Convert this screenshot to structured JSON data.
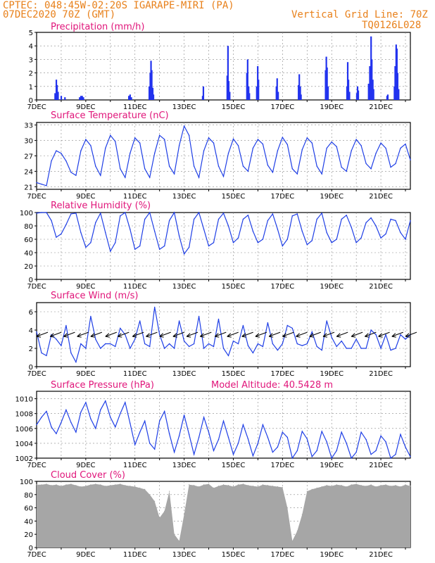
{
  "header": {
    "line1": "CPTEC:   048:45W-02:20S   IGARAPE-MIRI (PA)",
    "line2": "07DEC2020 70Z (GMT)",
    "grid_note": "Vertical Grid Line: 70Z",
    "code": "TQ0126L028"
  },
  "colors": {
    "header": "#e8801a",
    "title": "#e0157a",
    "line": "#1f3fe6",
    "bar": "#2233ee",
    "cloud": "#a6a6a6"
  },
  "chart_data": [
    {
      "type": "bar",
      "title": "Precipitation (mm/h)",
      "x_labels": [
        "7DEC",
        "9DEC",
        "11DEC",
        "13DEC",
        "15DEC",
        "17DEC",
        "19DEC",
        "21DEC"
      ],
      "x_unit": "day",
      "xlim": [
        7.0,
        22.2
      ],
      "ylim": [
        0,
        5
      ],
      "yticks": [
        0,
        1,
        2,
        3,
        4,
        5
      ],
      "points": [
        [
          7.75,
          0.5
        ],
        [
          7.8,
          1.5
        ],
        [
          7.83,
          1.1
        ],
        [
          7.87,
          0.6
        ],
        [
          8.0,
          0.3
        ],
        [
          8.15,
          0.2
        ],
        [
          8.75,
          0.2
        ],
        [
          8.8,
          0.3
        ],
        [
          8.85,
          0.3
        ],
        [
          8.9,
          0.2
        ],
        [
          10.75,
          0.3
        ],
        [
          10.8,
          0.4
        ],
        [
          10.85,
          0.2
        ],
        [
          11.58,
          1.0
        ],
        [
          11.62,
          2.0
        ],
        [
          11.65,
          2.9
        ],
        [
          11.68,
          2.2
        ],
        [
          11.72,
          0.9
        ],
        [
          11.75,
          0.4
        ],
        [
          13.75,
          0.3
        ],
        [
          13.78,
          1.0
        ],
        [
          14.75,
          1.8
        ],
        [
          14.78,
          4.0
        ],
        [
          14.81,
          1.4
        ],
        [
          14.85,
          0.6
        ],
        [
          15.55,
          2.0
        ],
        [
          15.58,
          3.0
        ],
        [
          15.62,
          1.0
        ],
        [
          15.65,
          0.5
        ],
        [
          15.95,
          1.0
        ],
        [
          15.99,
          2.5
        ],
        [
          16.02,
          1.5
        ],
        [
          16.75,
          1.0
        ],
        [
          16.78,
          1.6
        ],
        [
          16.82,
          0.6
        ],
        [
          17.65,
          1.1
        ],
        [
          17.68,
          1.9
        ],
        [
          17.72,
          1.0
        ],
        [
          17.75,
          0.4
        ],
        [
          18.75,
          2.2
        ],
        [
          18.78,
          3.2
        ],
        [
          18.81,
          2.4
        ],
        [
          18.85,
          1.0
        ],
        [
          19.62,
          1.0
        ],
        [
          19.65,
          2.8
        ],
        [
          19.68,
          1.5
        ],
        [
          19.72,
          0.6
        ],
        [
          20.02,
          0.5
        ],
        [
          20.05,
          1.0
        ],
        [
          20.08,
          0.7
        ],
        [
          20.5,
          1.2
        ],
        [
          20.55,
          2.5
        ],
        [
          20.6,
          4.7
        ],
        [
          20.63,
          3.0
        ],
        [
          20.67,
          1.5
        ],
        [
          20.7,
          0.8
        ],
        [
          21.25,
          0.3
        ],
        [
          21.28,
          0.4
        ],
        [
          21.55,
          1.0
        ],
        [
          21.58,
          2.5
        ],
        [
          21.62,
          4.1
        ],
        [
          21.65,
          3.8
        ],
        [
          21.68,
          2.0
        ],
        [
          21.72,
          0.8
        ]
      ]
    },
    {
      "type": "line",
      "title": "Surface Temperature (nC)",
      "x_labels": [
        "7DEC",
        "9DEC",
        "11DEC",
        "13DEC",
        "15DEC",
        "17DEC",
        "19DEC",
        "21DEC"
      ],
      "xlim": [
        7.0,
        22.2
      ],
      "ylim": [
        20.5,
        33.5
      ],
      "yticks": [
        21,
        24,
        27,
        30,
        33
      ],
      "x": [
        7.0,
        7.2,
        7.4,
        7.6,
        7.8,
        8.0,
        8.2,
        8.4,
        8.6,
        8.8,
        9.0,
        9.2,
        9.4,
        9.6,
        9.8,
        10.0,
        10.2,
        10.4,
        10.6,
        10.8,
        11.0,
        11.2,
        11.4,
        11.6,
        11.8,
        12.0,
        12.2,
        12.4,
        12.6,
        12.8,
        13.0,
        13.2,
        13.4,
        13.6,
        13.8,
        14.0,
        14.2,
        14.4,
        14.6,
        14.8,
        15.0,
        15.2,
        15.4,
        15.6,
        15.8,
        16.0,
        16.2,
        16.4,
        16.6,
        16.8,
        17.0,
        17.2,
        17.4,
        17.6,
        17.8,
        18.0,
        18.2,
        18.4,
        18.6,
        18.8,
        19.0,
        19.2,
        19.4,
        19.6,
        19.8,
        20.0,
        20.2,
        20.4,
        20.6,
        20.8,
        21.0,
        21.2,
        21.4,
        21.6,
        21.8,
        22.0,
        22.2
      ],
      "y": [
        21.8,
        21.5,
        21.2,
        26.0,
        28.0,
        27.5,
        26.0,
        23.8,
        23.2,
        28.0,
        30.2,
        29.0,
        25.0,
        23.2,
        28.5,
        31.0,
        29.8,
        24.5,
        22.8,
        27.5,
        30.5,
        29.5,
        24.5,
        22.8,
        27.5,
        31.0,
        30.2,
        25.0,
        23.5,
        29.0,
        32.8,
        31.0,
        25.0,
        22.8,
        28.0,
        30.5,
        29.5,
        25.0,
        23.0,
        27.5,
        30.3,
        29.0,
        25.0,
        24.0,
        28.5,
        30.2,
        29.3,
        25.2,
        23.8,
        28.0,
        30.6,
        29.2,
        24.5,
        23.5,
        28.2,
        30.5,
        29.5,
        25.0,
        23.5,
        28.5,
        29.7,
        28.8,
        24.8,
        24.0,
        28.0,
        30.2,
        29.0,
        25.5,
        24.5,
        27.5,
        29.5,
        28.5,
        24.8,
        25.5,
        28.5,
        29.3,
        26.2
      ]
    },
    {
      "type": "line",
      "title": "Relative Humidity (%)",
      "x_labels": [
        "7DEC",
        "9DEC",
        "11DEC",
        "13DEC",
        "15DEC",
        "17DEC",
        "19DEC",
        "21DEC"
      ],
      "xlim": [
        7.0,
        22.2
      ],
      "ylim": [
        0,
        100
      ],
      "yticks": [
        0,
        20,
        40,
        60,
        80,
        100
      ],
      "x": [
        7.0,
        7.2,
        7.4,
        7.6,
        7.8,
        8.0,
        8.2,
        8.4,
        8.6,
        8.8,
        9.0,
        9.2,
        9.4,
        9.6,
        9.8,
        10.0,
        10.2,
        10.4,
        10.6,
        10.8,
        11.0,
        11.2,
        11.4,
        11.6,
        11.8,
        12.0,
        12.2,
        12.4,
        12.6,
        12.8,
        13.0,
        13.2,
        13.4,
        13.6,
        13.8,
        14.0,
        14.2,
        14.4,
        14.6,
        14.8,
        15.0,
        15.2,
        15.4,
        15.6,
        15.8,
        16.0,
        16.2,
        16.4,
        16.6,
        16.8,
        17.0,
        17.2,
        17.4,
        17.6,
        17.8,
        18.0,
        18.2,
        18.4,
        18.6,
        18.8,
        19.0,
        19.2,
        19.4,
        19.6,
        19.8,
        20.0,
        20.2,
        20.4,
        20.6,
        20.8,
        21.0,
        21.2,
        21.4,
        21.6,
        21.8,
        22.0,
        22.2
      ],
      "y": [
        99,
        100,
        100,
        88,
        63,
        68,
        82,
        98,
        99,
        70,
        48,
        55,
        85,
        99,
        70,
        42,
        55,
        95,
        100,
        75,
        45,
        50,
        90,
        100,
        72,
        45,
        50,
        88,
        100,
        65,
        38,
        48,
        90,
        100,
        75,
        50,
        55,
        90,
        99,
        80,
        55,
        62,
        90,
        96,
        72,
        55,
        60,
        88,
        98,
        75,
        50,
        60,
        95,
        98,
        72,
        52,
        58,
        90,
        99,
        70,
        55,
        60,
        90,
        96,
        78,
        55,
        62,
        85,
        92,
        80,
        62,
        68,
        90,
        88,
        70,
        60,
        88
      ]
    },
    {
      "type": "line",
      "title": "Surface Wind (m/s)",
      "x_labels": [
        "7DEC",
        "9DEC",
        "11DEC",
        "13DEC",
        "15DEC",
        "17DEC",
        "19DEC",
        "21DEC"
      ],
      "xlim": [
        7.0,
        22.2
      ],
      "ylim": [
        0,
        7
      ],
      "yticks": [
        0,
        2,
        4,
        6
      ],
      "x": [
        7.0,
        7.2,
        7.4,
        7.6,
        7.8,
        8.0,
        8.2,
        8.4,
        8.6,
        8.8,
        9.0,
        9.2,
        9.4,
        9.6,
        9.8,
        10.0,
        10.2,
        10.4,
        10.6,
        10.8,
        11.0,
        11.2,
        11.4,
        11.6,
        11.8,
        12.0,
        12.2,
        12.4,
        12.6,
        12.8,
        13.0,
        13.2,
        13.4,
        13.6,
        13.8,
        14.0,
        14.2,
        14.4,
        14.6,
        14.8,
        15.0,
        15.2,
        15.4,
        15.6,
        15.8,
        16.0,
        16.2,
        16.4,
        16.6,
        16.8,
        17.0,
        17.2,
        17.4,
        17.6,
        17.8,
        18.0,
        18.2,
        18.4,
        18.6,
        18.8,
        19.0,
        19.2,
        19.4,
        19.6,
        19.8,
        20.0,
        20.2,
        20.4,
        20.6,
        20.8,
        21.0,
        21.2,
        21.4,
        21.6,
        21.8,
        22.0,
        22.2
      ],
      "y": [
        3.8,
        1.5,
        1.2,
        3.5,
        3.0,
        2.3,
        4.5,
        1.5,
        0.5,
        2.5,
        2.0,
        5.5,
        3.0,
        2.0,
        2.5,
        2.5,
        2.2,
        4.2,
        3.5,
        2.0,
        3.0,
        5.0,
        2.5,
        2.2,
        6.5,
        3.5,
        2.0,
        2.5,
        2.0,
        5.0,
        2.8,
        2.2,
        2.5,
        5.5,
        2.0,
        2.5,
        2.2,
        5.2,
        2.0,
        1.2,
        2.8,
        2.5,
        4.5,
        2.3,
        1.5,
        2.5,
        2.2,
        4.8,
        2.5,
        1.8,
        2.5,
        4.5,
        4.2,
        2.5,
        2.3,
        2.5,
        3.8,
        2.2,
        1.8,
        5.0,
        3.2,
        2.2,
        2.8,
        2.0,
        2.0,
        3.0,
        2.0,
        2.0,
        4.0,
        3.5,
        2.0,
        3.5,
        1.8,
        2.0,
        3.5,
        3.0,
        3.5
      ]
    },
    {
      "type": "line",
      "title": "Surface Pressure (hPa)",
      "annotation": "Model Altitude: 40.5428 m",
      "x_labels": [
        "7DEC",
        "9DEC",
        "11DEC",
        "13DEC",
        "15DEC",
        "17DEC",
        "19DEC",
        "21DEC"
      ],
      "xlim": [
        7.0,
        22.2
      ],
      "ylim": [
        1002,
        1011
      ],
      "yticks": [
        1002,
        1004,
        1006,
        1008,
        1010
      ],
      "x": [
        7.0,
        7.2,
        7.4,
        7.6,
        7.8,
        8.0,
        8.2,
        8.4,
        8.6,
        8.8,
        9.0,
        9.2,
        9.4,
        9.6,
        9.8,
        10.0,
        10.2,
        10.4,
        10.6,
        10.8,
        11.0,
        11.2,
        11.4,
        11.6,
        11.8,
        12.0,
        12.2,
        12.4,
        12.6,
        12.8,
        13.0,
        13.2,
        13.4,
        13.6,
        13.8,
        14.0,
        14.2,
        14.4,
        14.6,
        14.8,
        15.0,
        15.2,
        15.4,
        15.6,
        15.8,
        16.0,
        16.2,
        16.4,
        16.6,
        16.8,
        17.0,
        17.2,
        17.4,
        17.6,
        17.8,
        18.0,
        18.2,
        18.4,
        18.6,
        18.8,
        19.0,
        19.2,
        19.4,
        19.6,
        19.8,
        20.0,
        20.2,
        20.4,
        20.6,
        20.8,
        21.0,
        21.2,
        21.4,
        21.6,
        21.8,
        22.0,
        22.2
      ],
      "y": [
        1006.5,
        1007.5,
        1008.3,
        1006.2,
        1005.3,
        1006.8,
        1008.5,
        1006.8,
        1005.5,
        1008.2,
        1009.5,
        1007.3,
        1006.0,
        1008.5,
        1009.7,
        1007.5,
        1006.2,
        1008.0,
        1009.5,
        1006.7,
        1003.8,
        1005.5,
        1007.0,
        1004.0,
        1003.2,
        1007.0,
        1008.3,
        1005.3,
        1002.8,
        1005.0,
        1007.8,
        1005.2,
        1002.5,
        1004.8,
        1007.5,
        1005.5,
        1003.0,
        1004.5,
        1007.0,
        1004.8,
        1002.5,
        1004.0,
        1006.5,
        1004.6,
        1002.3,
        1004.0,
        1006.5,
        1004.8,
        1002.8,
        1003.5,
        1005.5,
        1004.8,
        1002.0,
        1003.0,
        1005.6,
        1004.6,
        1002.2,
        1003.0,
        1005.6,
        1004.2,
        1002.0,
        1003.0,
        1005.5,
        1004.0,
        1002.0,
        1002.8,
        1005.5,
        1004.5,
        1002.5,
        1003.0,
        1005.0,
        1004.2,
        1002.0,
        1002.5,
        1005.2,
        1003.5,
        1002.2
      ]
    },
    {
      "type": "bar",
      "title": "Cloud Cover (%)",
      "x_labels": [
        "7DEC",
        "9DEC",
        "11DEC",
        "13DEC",
        "15DEC",
        "17DEC",
        "19DEC",
        "21DEC"
      ],
      "xlim": [
        7.0,
        22.2
      ],
      "ylim": [
        0,
        100
      ],
      "yticks": [
        0,
        20,
        40,
        60,
        80,
        100
      ],
      "x": [
        7.0,
        7.2,
        7.4,
        7.6,
        7.8,
        8.0,
        8.2,
        8.4,
        8.6,
        8.8,
        9.0,
        9.2,
        9.4,
        9.6,
        9.8,
        10.0,
        10.2,
        10.4,
        10.6,
        10.8,
        11.0,
        11.2,
        11.4,
        11.6,
        11.8,
        12.0,
        12.2,
        12.4,
        12.6,
        12.8,
        13.0,
        13.2,
        13.4,
        13.6,
        13.8,
        14.0,
        14.2,
        14.4,
        14.6,
        14.8,
        15.0,
        15.2,
        15.4,
        15.6,
        15.8,
        16.0,
        16.2,
        16.4,
        16.6,
        16.8,
        17.0,
        17.2,
        17.4,
        17.6,
        17.8,
        18.0,
        18.2,
        18.4,
        18.6,
        18.8,
        19.0,
        19.2,
        19.4,
        19.6,
        19.8,
        20.0,
        20.2,
        20.4,
        20.6,
        20.8,
        21.0,
        21.2,
        21.4,
        21.6,
        21.8,
        22.0,
        22.2
      ],
      "y": [
        95,
        95,
        96,
        94,
        95,
        93,
        95,
        96,
        94,
        92,
        93,
        95,
        96,
        95,
        93,
        94,
        95,
        96,
        94,
        93,
        92,
        90,
        88,
        80,
        70,
        45,
        55,
        85,
        20,
        10,
        50,
        95,
        94,
        92,
        95,
        96,
        90,
        93,
        95,
        94,
        92,
        95,
        96,
        94,
        93,
        92,
        95,
        94,
        93,
        92,
        91,
        60,
        10,
        25,
        50,
        85,
        88,
        90,
        92,
        94,
        93,
        95,
        94,
        92,
        95,
        96,
        94,
        93,
        95,
        92,
        94,
        95,
        93,
        94,
        92,
        95,
        93
      ]
    }
  ],
  "wind_vectors": [
    {
      "x": 7.0,
      "dir": "NW"
    },
    {
      "x": 7.55,
      "dir": "NW"
    },
    {
      "x": 8.1,
      "dir": "NW"
    },
    {
      "x": 8.65,
      "dir": "NW"
    },
    {
      "x": 9.2,
      "dir": "NW"
    },
    {
      "x": 9.8,
      "dir": "NW"
    },
    {
      "x": 10.3,
      "dir": "NW"
    },
    {
      "x": 10.9,
      "dir": "NW"
    },
    {
      "x": 11.45,
      "dir": "NW"
    },
    {
      "x": 12.0,
      "dir": "NW"
    },
    {
      "x": 12.55,
      "dir": "NW"
    },
    {
      "x": 13.1,
      "dir": "NW"
    },
    {
      "x": 13.65,
      "dir": "NW"
    },
    {
      "x": 14.25,
      "dir": "NW"
    },
    {
      "x": 14.75,
      "dir": "NW"
    },
    {
      "x": 15.35,
      "dir": "NW"
    },
    {
      "x": 15.9,
      "dir": "NW"
    },
    {
      "x": 16.45,
      "dir": "NW"
    },
    {
      "x": 17.0,
      "dir": "NW"
    },
    {
      "x": 17.55,
      "dir": "NW"
    },
    {
      "x": 18.1,
      "dir": "NW"
    },
    {
      "x": 18.65,
      "dir": "NW"
    },
    {
      "x": 19.2,
      "dir": "NW"
    },
    {
      "x": 19.8,
      "dir": "NW"
    },
    {
      "x": 20.35,
      "dir": "NW"
    },
    {
      "x": 20.9,
      "dir": "NW"
    },
    {
      "x": 21.45,
      "dir": "NW"
    },
    {
      "x": 22.0,
      "dir": "NW"
    }
  ]
}
